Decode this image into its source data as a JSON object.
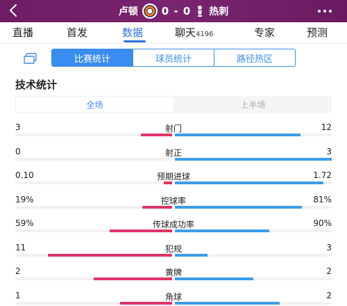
{
  "header": {
    "home_team": "卢顿",
    "away_team": "热刺",
    "score": "0 - 0"
  },
  "nav": {
    "tabs": [
      "直播",
      "首发",
      "数据",
      "聊天",
      "专家",
      "预测"
    ],
    "chat_count": "4196",
    "active_tab": "数据"
  },
  "subtabs": [
    "比赛统计",
    "球员统计",
    "路径热区"
  ],
  "section_title": "技术统计",
  "half_toggle": [
    "全场",
    "上半场"
  ],
  "colors": {
    "header": "#7a2470",
    "accent_blue": "#3a8cf0",
    "home_bar": "#e0336b",
    "away_bar": "#3b9ce8"
  },
  "stats": [
    {
      "label": "射门",
      "home": "3",
      "away": "12",
      "home_frac": 0.2,
      "away_frac": 0.8
    },
    {
      "label": "射正",
      "home": "0",
      "away": "3",
      "home_frac": 0.0,
      "away_frac": 1.0
    },
    {
      "label": "预期进球",
      "home": "0.10",
      "away": "1.72",
      "home_frac": 0.055,
      "away_frac": 0.945
    },
    {
      "label": "控球率",
      "home": "19%",
      "away": "81%",
      "home_frac": 0.19,
      "away_frac": 0.81
    },
    {
      "label": "传球成功率",
      "home": "59%",
      "away": "90%",
      "home_frac": 0.4,
      "away_frac": 0.6
    },
    {
      "label": "犯规",
      "home": "11",
      "away": "3",
      "home_frac": 0.79,
      "away_frac": 0.21
    },
    {
      "label": "黄牌",
      "home": "2",
      "away": "2",
      "home_frac": 0.5,
      "away_frac": 0.5
    },
    {
      "label": "角球",
      "home": "1",
      "away": "2",
      "home_frac": 0.33,
      "away_frac": 0.67
    }
  ]
}
